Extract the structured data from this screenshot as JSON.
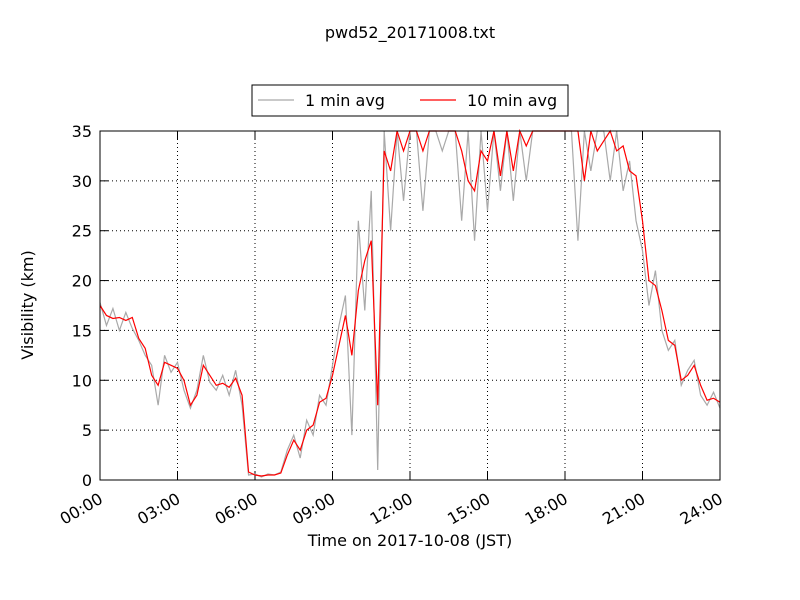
{
  "chart_data": {
    "type": "line",
    "title": "pwd52_20171008.txt",
    "xlabel": "Time on 2017-10-08 (JST)",
    "ylabel": "Visibility (km)",
    "x": [
      0,
      0.25,
      0.5,
      0.75,
      1,
      1.25,
      1.5,
      1.75,
      2,
      2.25,
      2.5,
      2.75,
      3,
      3.25,
      3.5,
      3.75,
      4,
      4.25,
      4.5,
      4.75,
      5,
      5.25,
      5.5,
      5.75,
      6,
      6.25,
      6.5,
      6.75,
      7,
      7.25,
      7.5,
      7.75,
      8,
      8.25,
      8.5,
      8.75,
      9,
      9.25,
      9.5,
      9.75,
      10,
      10.25,
      10.5,
      10.75,
      11,
      11.25,
      11.5,
      11.75,
      12,
      12.25,
      12.5,
      12.75,
      13,
      13.25,
      13.5,
      13.75,
      14,
      14.25,
      14.5,
      14.75,
      15,
      15.25,
      15.5,
      15.75,
      16,
      16.25,
      16.5,
      16.75,
      17,
      17.25,
      17.5,
      17.75,
      18,
      18.25,
      18.5,
      18.75,
      19,
      19.25,
      19.5,
      19.75,
      20,
      20.25,
      20.5,
      20.75,
      21,
      21.25,
      21.5,
      21.75,
      22,
      22.25,
      22.5,
      22.75,
      23,
      23.25,
      23.5,
      23.75,
      24
    ],
    "series": [
      {
        "name": "1 min avg",
        "color": "#a9a9a9",
        "values": [
          17.8,
          15.5,
          17.2,
          15.0,
          16.8,
          15.2,
          14.0,
          12.5,
          11.5,
          7.5,
          12.5,
          10.8,
          11.8,
          9.0,
          7.2,
          9.0,
          12.5,
          9.8,
          9.0,
          10.5,
          8.5,
          11.0,
          7.5,
          0.5,
          0.6,
          0.3,
          0.6,
          0.5,
          0.8,
          3.0,
          4.5,
          2.2,
          6.0,
          4.5,
          8.5,
          7.5,
          11.5,
          15.5,
          18.5,
          4.5,
          26,
          17,
          29,
          1.0,
          35,
          25,
          35,
          28,
          35,
          35,
          27,
          35,
          35,
          33,
          35,
          35,
          26,
          35,
          24,
          35,
          27,
          35,
          29,
          35,
          28,
          35,
          30,
          35,
          35,
          35,
          35,
          35,
          35,
          35,
          24,
          35,
          31,
          35,
          35,
          30,
          35,
          29,
          32,
          26,
          23,
          17.5,
          21,
          15,
          13,
          14,
          9.5,
          11,
          12,
          8.5,
          7.5,
          8.8,
          7.2
        ]
      },
      {
        "name": "10 min avg",
        "color": "#ff0000",
        "values": [
          17.5,
          16.5,
          16.2,
          16.3,
          16.0,
          16.3,
          14.2,
          13.2,
          10.5,
          9.5,
          11.8,
          11.5,
          11.2,
          10.0,
          7.5,
          8.5,
          11.5,
          10.5,
          9.5,
          9.7,
          9.3,
          10.2,
          8.5,
          0.8,
          0.5,
          0.4,
          0.5,
          0.5,
          0.7,
          2.5,
          4.0,
          3.0,
          5.0,
          5.5,
          7.8,
          8.2,
          10.5,
          13.5,
          16.5,
          12.5,
          19,
          22,
          24,
          7.5,
          33,
          31,
          35,
          33,
          35,
          35,
          33,
          35,
          35,
          35,
          35,
          35,
          33,
          30,
          29,
          33,
          32,
          35,
          30.5,
          35,
          31,
          35,
          33.5,
          35,
          35,
          35,
          35,
          35,
          35,
          35,
          35,
          30,
          35,
          33,
          34,
          35,
          33,
          33.5,
          31,
          30.5,
          26,
          20,
          19.5,
          17,
          14,
          13.5,
          10,
          10.5,
          11.5,
          9.5,
          8,
          8.2,
          7.8
        ]
      }
    ],
    "xlim": [
      0,
      24
    ],
    "xticks": [
      {
        "value": 0,
        "label": "00:00"
      },
      {
        "value": 3,
        "label": "03:00"
      },
      {
        "value": 6,
        "label": "06:00"
      },
      {
        "value": 9,
        "label": "09:00"
      },
      {
        "value": 12,
        "label": "12:00"
      },
      {
        "value": 15,
        "label": "15:00"
      },
      {
        "value": 18,
        "label": "18:00"
      },
      {
        "value": 21,
        "label": "21:00"
      },
      {
        "value": 24,
        "label": "24:00"
      }
    ],
    "ylim": [
      0,
      35
    ],
    "yticks": [
      0,
      5,
      10,
      15,
      20,
      25,
      30,
      35
    ],
    "grid": true,
    "legend": "upper center"
  }
}
